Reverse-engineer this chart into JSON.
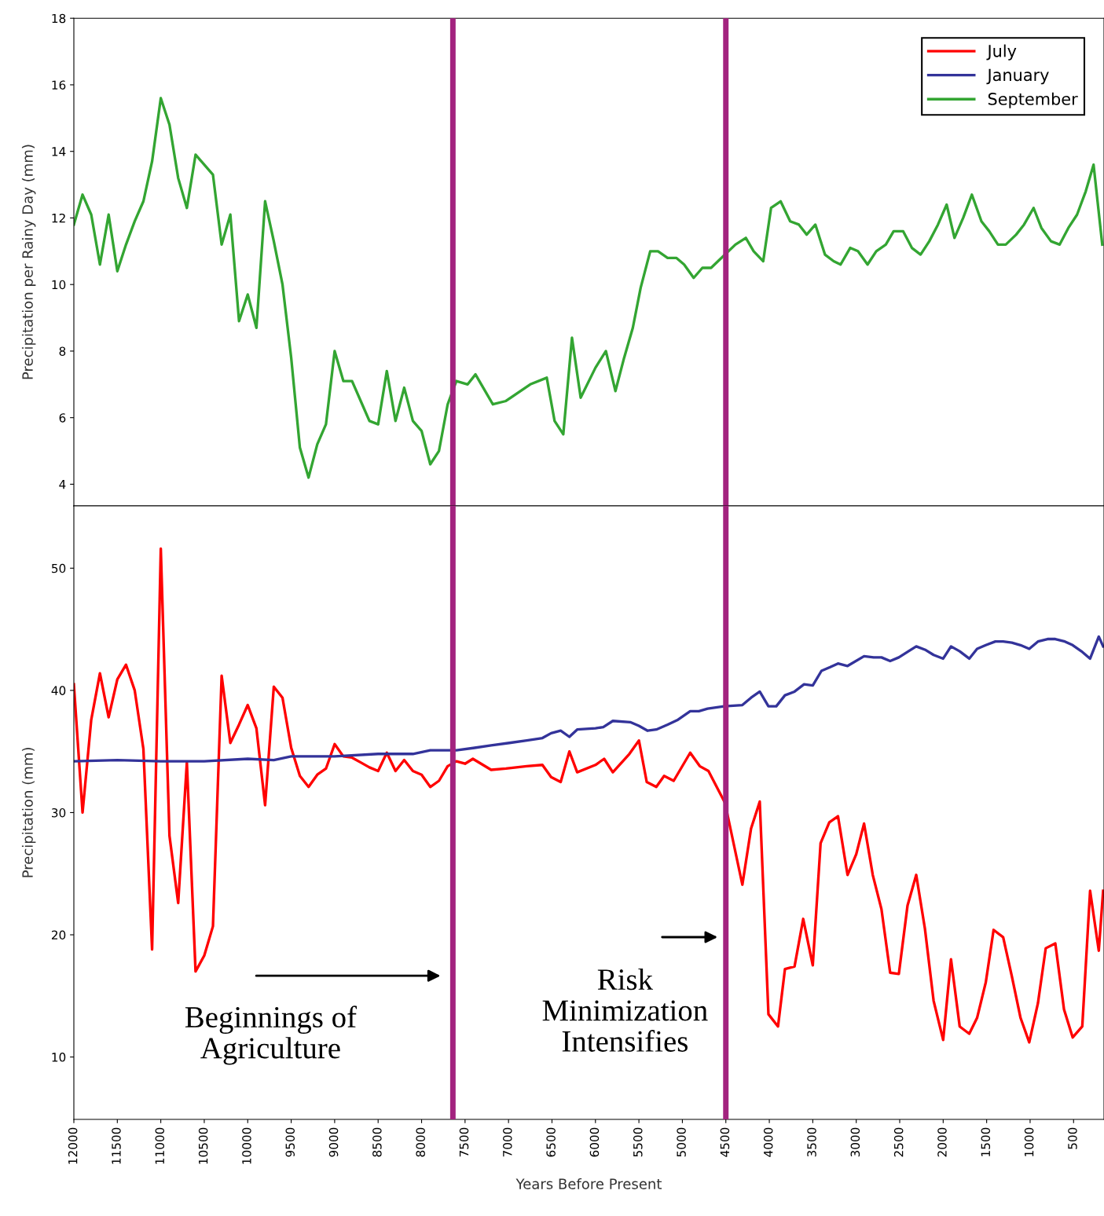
{
  "chart_data": [
    {
      "type": "line",
      "ylabel": "Precipitation per Rainy Day (mm)",
      "xlim": [
        12000,
        150
      ],
      "xticks": [
        12000,
        11500,
        11000,
        10500,
        10000,
        9500,
        9000,
        8500,
        8000,
        7500,
        7000,
        6500,
        6000,
        5500,
        5000,
        4500,
        4000,
        3500,
        3000,
        2500,
        2000,
        1500,
        1000,
        500
      ],
      "ylim": [
        3.35,
        18
      ],
      "yticks": [
        4,
        6,
        8,
        10,
        12,
        14,
        16,
        18
      ],
      "tick_labels": "y",
      "grid": false,
      "legend": "top right",
      "ref_lines": [
        {
          "axis": "x",
          "value": 7640,
          "color": "#a3237f"
        },
        {
          "axis": "x",
          "value": 4500,
          "color": "#a3237f"
        }
      ],
      "series": [
        {
          "name": "September",
          "color": "#33a532",
          "x": [
            12000,
            11900,
            11800,
            11700,
            11600,
            11500,
            11400,
            11300,
            11200,
            11100,
            11000,
            10900,
            10800,
            10700,
            10600,
            10500,
            10400,
            10300,
            10200,
            10100,
            10000,
            9900,
            9800,
            9700,
            9600,
            9500,
            9400,
            9300,
            9200,
            9100,
            9000,
            8900,
            8800,
            8700,
            8600,
            8500,
            8400,
            8300,
            8200,
            8100,
            8000,
            7900,
            7800,
            7700,
            7600,
            7470,
            7380,
            7180,
            7030,
            6750,
            6560,
            6470,
            6370,
            6270,
            6170,
            6000,
            5880,
            5770,
            5670,
            5570,
            5480,
            5370,
            5280,
            5170,
            5070,
            4980,
            4870,
            4770,
            4670,
            4550,
            4390,
            4270,
            4180,
            4070,
            3980,
            3870,
            3760,
            3660,
            3570,
            3470,
            3360,
            3260,
            3180,
            3070,
            2980,
            2870,
            2770,
            2660,
            2570,
            2460,
            2360,
            2260,
            2160,
            2060,
            1960,
            1870,
            1770,
            1670,
            1560,
            1470,
            1370,
            1280,
            1160,
            1070,
            960,
            870,
            760,
            660,
            560,
            460,
            360,
            270,
            170
          ],
          "values": [
            11.8,
            12.7,
            12.1,
            10.6,
            12.1,
            10.4,
            11.2,
            11.9,
            12.5,
            13.7,
            15.6,
            14.8,
            13.2,
            12.3,
            13.9,
            13.6,
            13.3,
            11.2,
            12.1,
            8.9,
            9.7,
            8.7,
            12.5,
            11.3,
            10.0,
            7.8,
            5.1,
            4.2,
            5.2,
            5.8,
            8.0,
            7.1,
            7.1,
            6.5,
            5.9,
            5.8,
            7.4,
            5.9,
            6.9,
            5.9,
            5.6,
            4.6,
            5.0,
            6.4,
            7.1,
            7.0,
            7.3,
            6.4,
            6.5,
            7.0,
            7.2,
            5.9,
            5.5,
            8.4,
            6.6,
            7.5,
            8.0,
            6.8,
            7.8,
            8.7,
            9.9,
            11.0,
            11.0,
            10.8,
            10.8,
            10.6,
            10.2,
            10.5,
            10.5,
            10.8,
            11.2,
            11.4,
            11.0,
            10.7,
            12.3,
            12.5,
            11.9,
            11.8,
            11.5,
            11.8,
            10.9,
            10.7,
            10.6,
            11.1,
            11.0,
            10.6,
            11.0,
            11.2,
            11.6,
            11.6,
            11.1,
            10.9,
            11.3,
            11.8,
            12.4,
            11.4,
            12.0,
            12.7,
            11.9,
            11.6,
            11.2,
            11.2,
            11.5,
            11.8,
            12.3,
            11.7,
            11.3,
            11.2,
            11.7,
            12.1,
            12.8,
            13.6,
            11.2
          ]
        }
      ]
    },
    {
      "type": "line",
      "xlabel": "Years Before Present",
      "ylabel": "Precipitation (mm)",
      "xlim": [
        12000,
        150
      ],
      "xticks": [
        12000,
        11500,
        11000,
        10500,
        10000,
        9500,
        9000,
        8500,
        8000,
        7500,
        7000,
        6500,
        6000,
        5500,
        5000,
        4500,
        4000,
        3500,
        3000,
        2500,
        2000,
        1500,
        1000,
        500
      ],
      "ylim": [
        4.9,
        55.1
      ],
      "yticks": [
        10,
        20,
        30,
        40,
        50
      ],
      "grid": false,
      "ref_lines": [
        {
          "axis": "x",
          "value": 7640,
          "color": "#a3237f"
        },
        {
          "axis": "x",
          "value": 4500,
          "color": "#a3237f"
        }
      ],
      "annotations": [
        "Beginnings of\nAgriculture",
        "Risk\nMinimization\nIntensifies"
      ],
      "legend": "top right",
      "series": [
        {
          "name": "July",
          "color": "#ff0000",
          "x": [
            12000,
            11900,
            11800,
            11700,
            11600,
            11500,
            11400,
            11300,
            11200,
            11100,
            11000,
            10900,
            10800,
            10700,
            10600,
            10500,
            10400,
            10300,
            10200,
            10100,
            10000,
            9900,
            9800,
            9700,
            9600,
            9500,
            9400,
            9300,
            9200,
            9100,
            9000,
            8900,
            8800,
            8700,
            8600,
            8500,
            8400,
            8300,
            8200,
            8100,
            8000,
            7900,
            7800,
            7700,
            7600,
            7500,
            7410,
            7200,
            7030,
            6790,
            6610,
            6510,
            6400,
            6300,
            6210,
            6000,
            5900,
            5800,
            5610,
            5500,
            5410,
            5300,
            5210,
            5100,
            4910,
            4800,
            4700,
            4510,
            4310,
            4210,
            4110,
            4010,
            3900,
            3820,
            3710,
            3610,
            3500,
            3410,
            3310,
            3210,
            3100,
            3000,
            2910,
            2810,
            2710,
            2610,
            2510,
            2410,
            2310,
            2210,
            2110,
            2000,
            1910,
            1810,
            1700,
            1610,
            1510,
            1420,
            1310,
            1210,
            1110,
            1010,
            910,
            820,
            710,
            610,
            510,
            400,
            310,
            210,
            160
          ],
          "values": [
            40.5,
            30.0,
            37.6,
            41.4,
            37.8,
            40.9,
            42.1,
            40.0,
            35.2,
            18.8,
            51.6,
            28.1,
            22.6,
            34.1,
            17.0,
            18.3,
            20.7,
            41.2,
            35.7,
            37.2,
            38.8,
            36.9,
            30.6,
            40.3,
            39.4,
            35.3,
            33.0,
            32.1,
            33.1,
            33.6,
            35.6,
            34.6,
            34.5,
            34.1,
            33.7,
            33.4,
            34.9,
            33.4,
            34.3,
            33.4,
            33.1,
            32.1,
            32.6,
            33.8,
            34.2,
            34.0,
            34.4,
            33.5,
            33.6,
            33.8,
            33.9,
            32.9,
            32.5,
            35.0,
            33.3,
            33.9,
            34.4,
            33.3,
            34.8,
            35.9,
            32.5,
            32.1,
            33.0,
            32.6,
            34.9,
            33.8,
            33.4,
            30.8,
            24.1,
            28.7,
            30.9,
            13.5,
            12.5,
            17.2,
            17.4,
            21.3,
            17.5,
            27.5,
            29.2,
            29.7,
            24.9,
            26.6,
            29.1,
            24.9,
            22.1,
            16.9,
            16.8,
            22.4,
            24.9,
            20.5,
            14.6,
            11.4,
            18.0,
            12.5,
            11.9,
            13.2,
            16.1,
            20.4,
            19.8,
            16.6,
            13.2,
            11.2,
            14.4,
            18.9,
            19.3,
            13.9,
            11.6,
            12.5,
            23.6,
            18.7,
            23.6
          ]
        },
        {
          "name": "January",
          "color": "#33339a",
          "x": [
            12000,
            11500,
            11000,
            10500,
            10000,
            9700,
            9500,
            9000,
            8500,
            8100,
            7900,
            7700,
            7600,
            7390,
            7200,
            6990,
            6790,
            6610,
            6510,
            6400,
            6300,
            6210,
            6000,
            5910,
            5800,
            5600,
            5500,
            5400,
            5300,
            5170,
            5050,
            4910,
            4810,
            4710,
            4520,
            4310,
            4210,
            4110,
            4010,
            3920,
            3820,
            3710,
            3600,
            3500,
            3400,
            3300,
            3210,
            3100,
            2910,
            2800,
            2710,
            2610,
            2510,
            2400,
            2310,
            2200,
            2110,
            2000,
            1910,
            1810,
            1700,
            1610,
            1510,
            1400,
            1310,
            1210,
            1110,
            1010,
            910,
            800,
            710,
            600,
            510,
            410,
            310,
            210,
            160
          ],
          "values": [
            34.2,
            34.3,
            34.2,
            34.2,
            34.4,
            34.3,
            34.6,
            34.6,
            34.8,
            34.8,
            35.1,
            35.1,
            35.1,
            35.3,
            35.5,
            35.7,
            35.9,
            36.1,
            36.5,
            36.7,
            36.2,
            36.8,
            36.9,
            37.0,
            37.5,
            37.4,
            37.1,
            36.7,
            36.8,
            37.2,
            37.6,
            38.3,
            38.3,
            38.5,
            38.7,
            38.8,
            39.4,
            39.9,
            38.7,
            38.7,
            39.6,
            39.9,
            40.5,
            40.4,
            41.6,
            41.9,
            42.2,
            42.0,
            42.8,
            42.7,
            42.7,
            42.4,
            42.7,
            43.2,
            43.6,
            43.3,
            42.9,
            42.6,
            43.6,
            43.2,
            42.6,
            43.4,
            43.7,
            44.0,
            44.0,
            43.9,
            43.7,
            43.4,
            44.0,
            44.2,
            44.2,
            44.0,
            43.7,
            43.2,
            42.6,
            44.4,
            43.6
          ]
        }
      ]
    }
  ]
}
